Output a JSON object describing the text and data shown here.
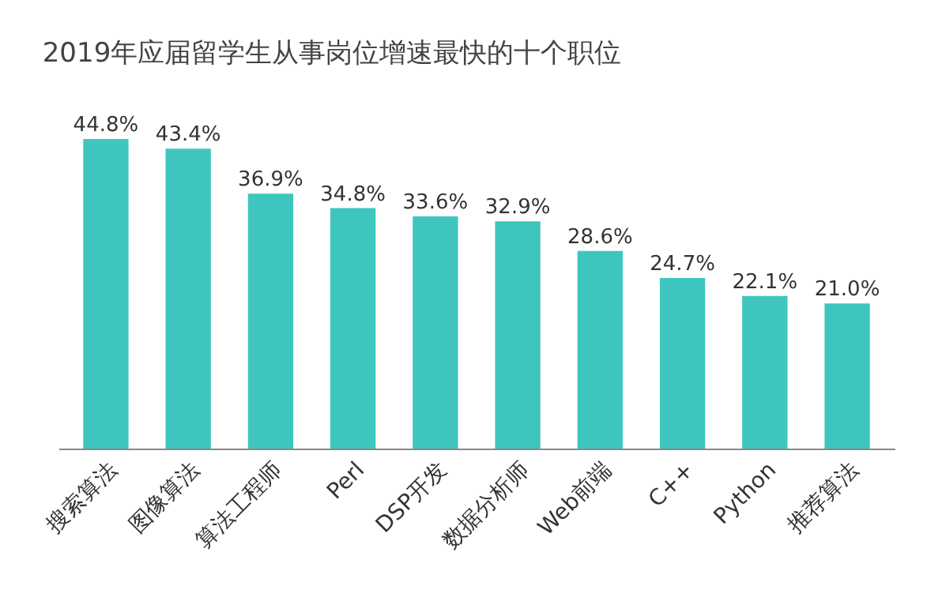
{
  "chart_data": {
    "type": "bar",
    "title": "2019年应届留学生从事岗位增速最快的十个职位",
    "categories": [
      "搜索算法",
      "图像算法",
      "算法工程师",
      "Perl",
      "DSP开发",
      "数据分析师",
      "Web前端",
      "C++",
      "Python",
      "推荐算法"
    ],
    "values": [
      44.8,
      43.4,
      36.9,
      34.8,
      33.6,
      32.9,
      28.6,
      24.7,
      22.1,
      21.0
    ],
    "value_labels": [
      "44.8%",
      "43.4%",
      "36.9%",
      "34.8%",
      "33.6%",
      "32.9%",
      "28.6%",
      "24.7%",
      "22.1%",
      "21.0%"
    ],
    "color": "#3ec6be",
    "grid": false
  }
}
